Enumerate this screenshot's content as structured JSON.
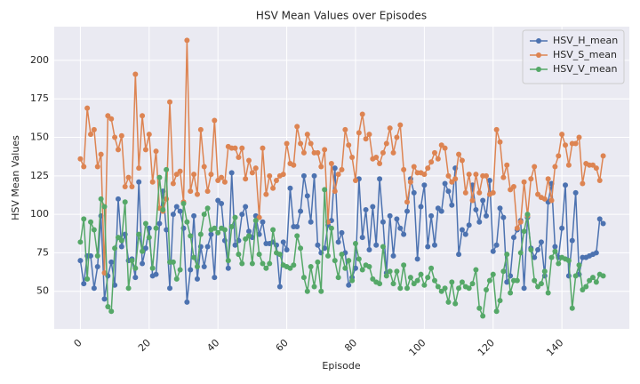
{
  "chart_data": {
    "type": "line",
    "title": "HSV Mean Values over Episodes",
    "x_label": "Episode",
    "y_label": "HSV Mean Values",
    "x": [
      0,
      1,
      2,
      3,
      4,
      5,
      6,
      7,
      8,
      9,
      10,
      11,
      12,
      13,
      14,
      15,
      16,
      17,
      18,
      19,
      20,
      21,
      22,
      23,
      24,
      25,
      26,
      27,
      28,
      29,
      30,
      31,
      32,
      33,
      34,
      35,
      36,
      37,
      38,
      39,
      40,
      41,
      42,
      43,
      44,
      45,
      46,
      47,
      48,
      49,
      50,
      51,
      52,
      53,
      54,
      55,
      56,
      57,
      58,
      59,
      60,
      61,
      62,
      63,
      64,
      65,
      66,
      67,
      68,
      69,
      70,
      71,
      72,
      73,
      74,
      75,
      76,
      77,
      78,
      79,
      80,
      81,
      82,
      83,
      84,
      85,
      86,
      87,
      88,
      89,
      90,
      91,
      92,
      93,
      94,
      95,
      96,
      97,
      98,
      99,
      100,
      101,
      102,
      103,
      104,
      105,
      106,
      107,
      108,
      109,
      110,
      111,
      112,
      113,
      114,
      115,
      116,
      117,
      118,
      119,
      120,
      121,
      122,
      123,
      124,
      125,
      126,
      127,
      128,
      129,
      130,
      131,
      132,
      133,
      134,
      135,
      136,
      137,
      138,
      139,
      140,
      141,
      142,
      143,
      144,
      145,
      146,
      147,
      148,
      149,
      150,
      151,
      152
    ],
    "series": [
      {
        "name": "HSV_H_mean",
        "color": "#4c72b0",
        "values": [
          70,
          55,
          73,
          73,
          52,
          66,
          99,
          45,
          60,
          69,
          54,
          110,
          79,
          87,
          70,
          71,
          59,
          121,
          68,
          78,
          91,
          60,
          61,
          94,
          115,
          90,
          52,
          100,
          105,
          102,
          91,
          43,
          64,
          99,
          58,
          79,
          66,
          79,
          87,
          59,
          109,
          107,
          83,
          65,
          127,
          80,
          83,
          100,
          105,
          89,
          85,
          99,
          87,
          95,
          81,
          81,
          82,
          80,
          53,
          82,
          77,
          117,
          92,
          92,
          102,
          125,
          112,
          95,
          125,
          80,
          75,
          78,
          93,
          96,
          130,
          82,
          88,
          75,
          54,
          59,
          65,
          123,
          85,
          103,
          77,
          105,
          80,
          123,
          95,
          62,
          99,
          73,
          97,
          91,
          87,
          102,
          123,
          114,
          71,
          105,
          119,
          79,
          99,
          80,
          104,
          102,
          120,
          115,
          106,
          130,
          74,
          90,
          87,
          93,
          119,
          103,
          95,
          109,
          99,
          122,
          76,
          80,
          104,
          98,
          56,
          60,
          85,
          90,
          96,
          52,
          98,
          78,
          72,
          77,
          82,
          60,
          108,
          120,
          79,
          72,
          91,
          119,
          60,
          83,
          114,
          61,
          72,
          72,
          73,
          74,
          75,
          97,
          94
        ]
      },
      {
        "name": "HSV_S_mean",
        "color": "#dd8452",
        "values": [
          136,
          131,
          169,
          152,
          155,
          131,
          139,
          62,
          164,
          162,
          150,
          142,
          151,
          118,
          124,
          118,
          191,
          130,
          164,
          142,
          152,
          121,
          141,
          104,
          102,
          110,
          173,
          120,
          126,
          128,
          108,
          213,
          115,
          126,
          113,
          155,
          131,
          115,
          126,
          161,
          122,
          124,
          121,
          144,
          143,
          143,
          137,
          143,
          123,
          135,
          127,
          130,
          98,
          143,
          113,
          125,
          117,
          122,
          125,
          126,
          146,
          133,
          132,
          157,
          146,
          140,
          152,
          146,
          140,
          140,
          131,
          142,
          95,
          133,
          115,
          126,
          129,
          155,
          145,
          137,
          122,
          153,
          165,
          149,
          152,
          136,
          137,
          133,
          140,
          146,
          156,
          140,
          150,
          158,
          129,
          108,
          121,
          131,
          127,
          127,
          126,
          130,
          134,
          140,
          136,
          145,
          143,
          125,
          121,
          123,
          139,
          135,
          114,
          126,
          109,
          126,
          114,
          125,
          125,
          113,
          114,
          155,
          147,
          124,
          132,
          116,
          118,
          91,
          95,
          121,
          99,
          123,
          131,
          113,
          111,
          110,
          123,
          109,
          131,
          138,
          152,
          145,
          132,
          146,
          146,
          150,
          120,
          133,
          132,
          132,
          130,
          122,
          138
        ]
      },
      {
        "name": "HSV_V_mean",
        "color": "#55a868",
        "values": [
          82,
          97,
          58,
          95,
          90,
          73,
          110,
          105,
          40,
          37,
          78,
          85,
          83,
          108,
          52,
          70,
          65,
          87,
          76,
          94,
          85,
          65,
          91,
          124,
          103,
          129,
          69,
          69,
          58,
          64,
          107,
          95,
          86,
          72,
          66,
          87,
          100,
          104,
          90,
          91,
          88,
          91,
          90,
          70,
          92,
          98,
          74,
          68,
          84,
          86,
          68,
          96,
          74,
          68,
          65,
          68,
          90,
          75,
          74,
          67,
          66,
          65,
          67,
          86,
          78,
          59,
          50,
          66,
          53,
          69,
          50,
          116,
          73,
          91,
          70,
          59,
          74,
          65,
          70,
          57,
          81,
          71,
          64,
          67,
          66,
          58,
          56,
          55,
          79,
          60,
          63,
          55,
          63,
          52,
          67,
          52,
          59,
          55,
          57,
          61,
          54,
          59,
          65,
          57,
          53,
          50,
          52,
          43,
          56,
          42,
          52,
          56,
          53,
          52,
          55,
          64,
          39,
          34,
          51,
          57,
          61,
          37,
          44,
          63,
          74,
          49,
          57,
          57,
          75,
          89,
          100,
          77,
          57,
          53,
          55,
          63,
          49,
          72,
          76,
          68,
          72,
          71,
          70,
          39,
          60,
          67,
          51,
          53,
          57,
          59,
          56,
          61,
          60
        ]
      }
    ],
    "xlim": [
      -7.6,
      159.6
    ],
    "ylim": [
      25.6,
      221.9
    ],
    "xticks": [
      0,
      20,
      40,
      60,
      80,
      100,
      120,
      140
    ],
    "yticks": [
      50,
      75,
      100,
      125,
      150,
      175,
      200
    ],
    "grid": true,
    "legend": "upper right"
  }
}
